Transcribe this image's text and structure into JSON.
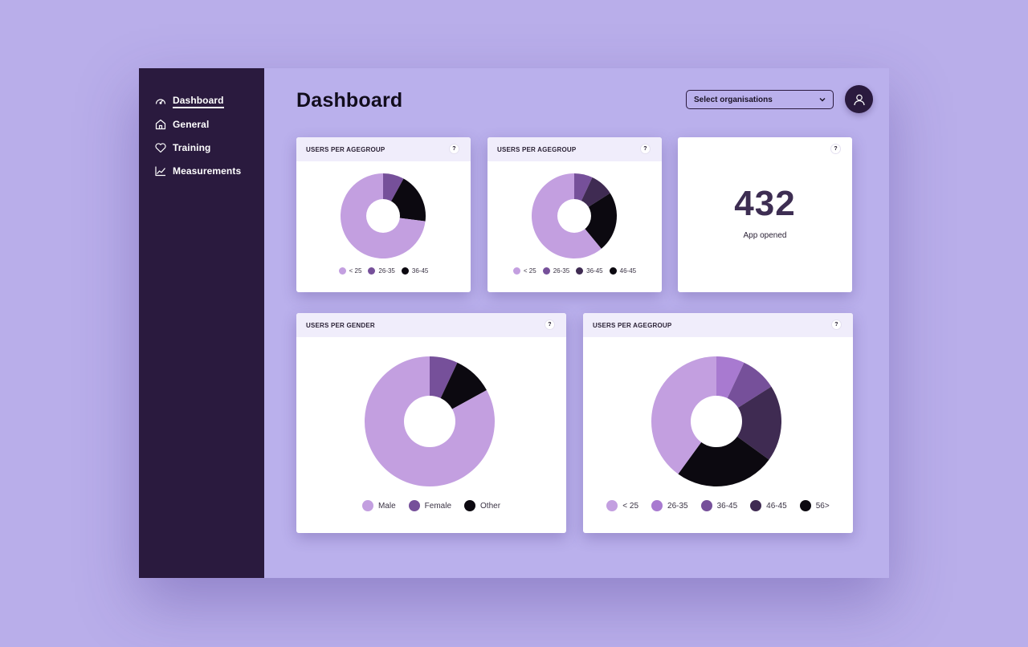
{
  "sidebar": {
    "items": [
      {
        "label": "Dashboard",
        "icon": "gauge-icon",
        "active": true
      },
      {
        "label": "General",
        "icon": "home-icon",
        "active": false
      },
      {
        "label": "Training",
        "icon": "heart-icon",
        "active": false
      },
      {
        "label": "Measurements",
        "icon": "line-chart-icon",
        "active": false
      }
    ]
  },
  "header": {
    "title": "Dashboard",
    "org_select": {
      "value": "Select organisations"
    },
    "avatar_icon": "user-icon"
  },
  "colors": {
    "sidebar_bg": "#2a1a3e",
    "page_bg": "#bab0ec",
    "lavender": "#c39fe0",
    "orchid": "#a87ad0",
    "violet": "#76509a",
    "plum": "#3f2b52",
    "black": "#0c0910"
  },
  "cards": {
    "age1": {
      "title": "USERS PER AGEGROUP",
      "help": "?"
    },
    "age2": {
      "title": "USERS PER AGEGROUP",
      "help": "?"
    },
    "metric": {
      "value": "432",
      "label": "App opened",
      "help": "?"
    },
    "gender": {
      "title": "USERS PER GENDER",
      "help": "?"
    },
    "age3": {
      "title": "USERS PER AGEGROUP",
      "help": "?"
    }
  },
  "chart_data": [
    {
      "type": "pie",
      "id": "age1",
      "title": "USERS PER AGEGROUP",
      "donut": true,
      "categories": [
        "< 25",
        "26-35",
        "36-45"
      ],
      "values": [
        73,
        8,
        19
      ],
      "colors": [
        "#c39fe0",
        "#76509a",
        "#0c0910"
      ],
      "legend": "bottom"
    },
    {
      "type": "pie",
      "id": "age2",
      "title": "USERS PER AGEGROUP",
      "donut": true,
      "categories": [
        "< 25",
        "26-35",
        "36-45",
        "46-45"
      ],
      "values": [
        61,
        7,
        9,
        23
      ],
      "colors": [
        "#c39fe0",
        "#76509a",
        "#3f2b52",
        "#0c0910"
      ],
      "legend": "bottom"
    },
    {
      "type": "pie",
      "id": "gender",
      "title": "USERS PER GENDER",
      "donut": true,
      "categories": [
        "Male",
        "Female",
        "Other"
      ],
      "values": [
        83,
        7,
        10
      ],
      "colors": [
        "#c39fe0",
        "#76509a",
        "#0c0910"
      ],
      "legend": "bottom"
    },
    {
      "type": "pie",
      "id": "age3",
      "title": "USERS PER AGEGROUP",
      "donut": true,
      "categories": [
        "< 25",
        "26-35",
        "36-45",
        "46-45",
        "56>"
      ],
      "values": [
        40,
        7,
        9,
        19,
        25
      ],
      "colors": [
        "#c39fe0",
        "#a87ad0",
        "#76509a",
        "#3f2b52",
        "#0c0910"
      ],
      "legend": "bottom"
    }
  ]
}
